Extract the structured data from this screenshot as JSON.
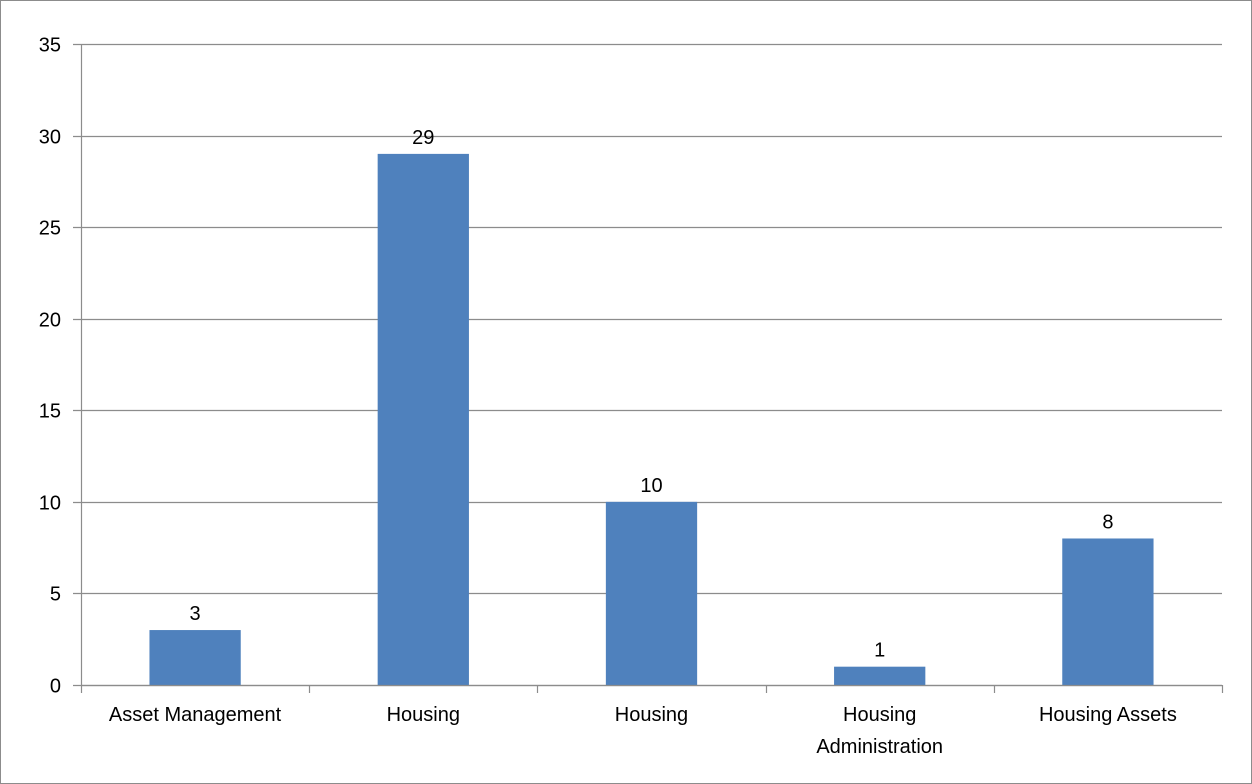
{
  "chart_data": {
    "type": "bar",
    "categories": [
      [
        "Asset Management"
      ],
      [
        "Housing"
      ],
      [
        "Housing"
      ],
      [
        "Housing",
        "Administration"
      ],
      [
        "Housing Assets"
      ]
    ],
    "values": [
      3,
      29,
      10,
      1,
      8
    ],
    "data_labels": [
      "3",
      "29",
      "10",
      "1",
      "8"
    ],
    "y_ticks": [
      "0",
      "5",
      "10",
      "15",
      "20",
      "25",
      "30",
      "35"
    ],
    "ylim": [
      0,
      35
    ],
    "grid": true,
    "legend": "none",
    "bar_color": "#4f81bd",
    "grid_color": "#8c8c8c",
    "axis_color": "#8c8c8c"
  }
}
